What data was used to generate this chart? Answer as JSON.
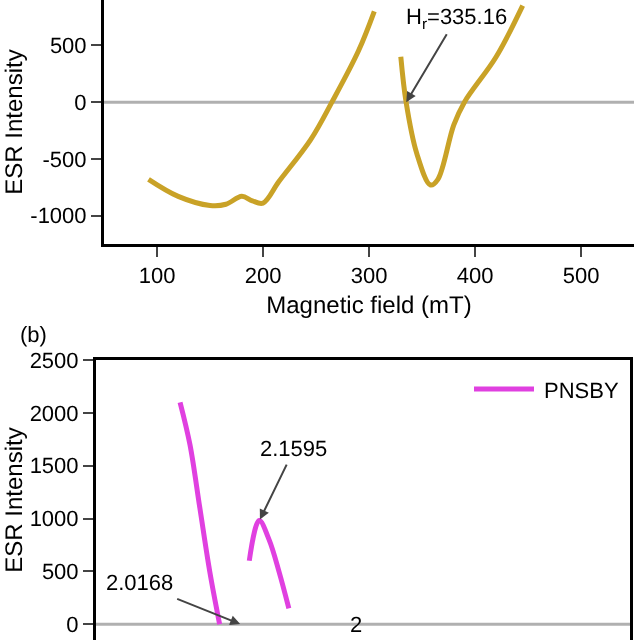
{
  "chart_data": [
    {
      "type": "line",
      "xlabel": "Magnetic field (mT)",
      "ylabel": "ESR Intensity",
      "x": [
        92,
        120,
        150,
        165,
        180,
        190,
        200,
        215,
        245,
        265,
        290,
        305,
        315,
        322,
        330,
        335,
        345,
        358,
        365,
        380,
        390,
        420,
        445
      ],
      "series": [
        {
          "color": "#c9a227",
          "values": [
            -680,
            -830,
            -910,
            -900,
            -830,
            -870,
            -890,
            -700,
            -330,
            0,
            450,
            800,
            null,
            null,
            400,
            0,
            -450,
            -730,
            -680,
            -200,
            0,
            400,
            850
          ]
        }
      ],
      "xlim": [
        50,
        550
      ],
      "xticks": [
        100,
        200,
        300,
        400,
        500
      ],
      "ylim": [
        -1250,
        900
      ],
      "yticks": [
        -1000,
        -500,
        0,
        500
      ],
      "ref_lines": [
        {
          "axis": "y",
          "value": 0,
          "color": "#b0b0b0"
        }
      ],
      "annotations": [
        {
          "text": "H$_{r}$=335.16",
          "x": 335.16,
          "y": 0
        }
      ],
      "grid": false,
      "legend": false
    },
    {
      "type": "line",
      "ylabel": "ESR Intensity",
      "categories": [
        null,
        null,
        null,
        null,
        null,
        null,
        null,
        null,
        null,
        null,
        null,
        null,
        null,
        null,
        null,
        null,
        null,
        null,
        null,
        null,
        null,
        null,
        null,
        null,
        null,
        null,
        null,
        null,
        null,
        null,
        null,
        null,
        null,
        null,
        null,
        null,
        null,
        null,
        null,
        null,
        null,
        null,
        null,
        null,
        null,
        null,
        null,
        null,
        null,
        null,
        null,
        null,
        null,
        null
      ],
      "series": [
        {
          "name": "PNSBY",
          "color": "#e040e0",
          "values": [
            null,
            null,
            null,
            null,
            null,
            null,
            null,
            null,
            2100,
            1700,
            1100,
            500,
            0,
            null,
            null,
            600,
            980,
            800,
            500,
            150,
            null,
            null,
            null,
            null,
            null,
            null,
            null,
            null,
            null,
            null,
            null,
            null,
            null,
            null,
            null,
            null,
            null,
            null,
            null,
            null,
            null,
            null,
            null,
            null,
            null,
            null,
            null,
            null,
            null,
            null,
            null,
            null,
            null,
            null
          ]
        }
      ],
      "ylim": [
        -150,
        2500
      ],
      "yticks": [
        0,
        500,
        1000,
        1500,
        2000,
        2500
      ],
      "tick_labels": "y",
      "ref_lines": [
        {
          "axis": "y",
          "value": 0,
          "color": "#b0b0b0"
        }
      ],
      "annotations": [
        "(b)",
        "2.1595",
        "2.0168",
        "2"
      ],
      "grid": false,
      "legend": "top right"
    }
  ]
}
